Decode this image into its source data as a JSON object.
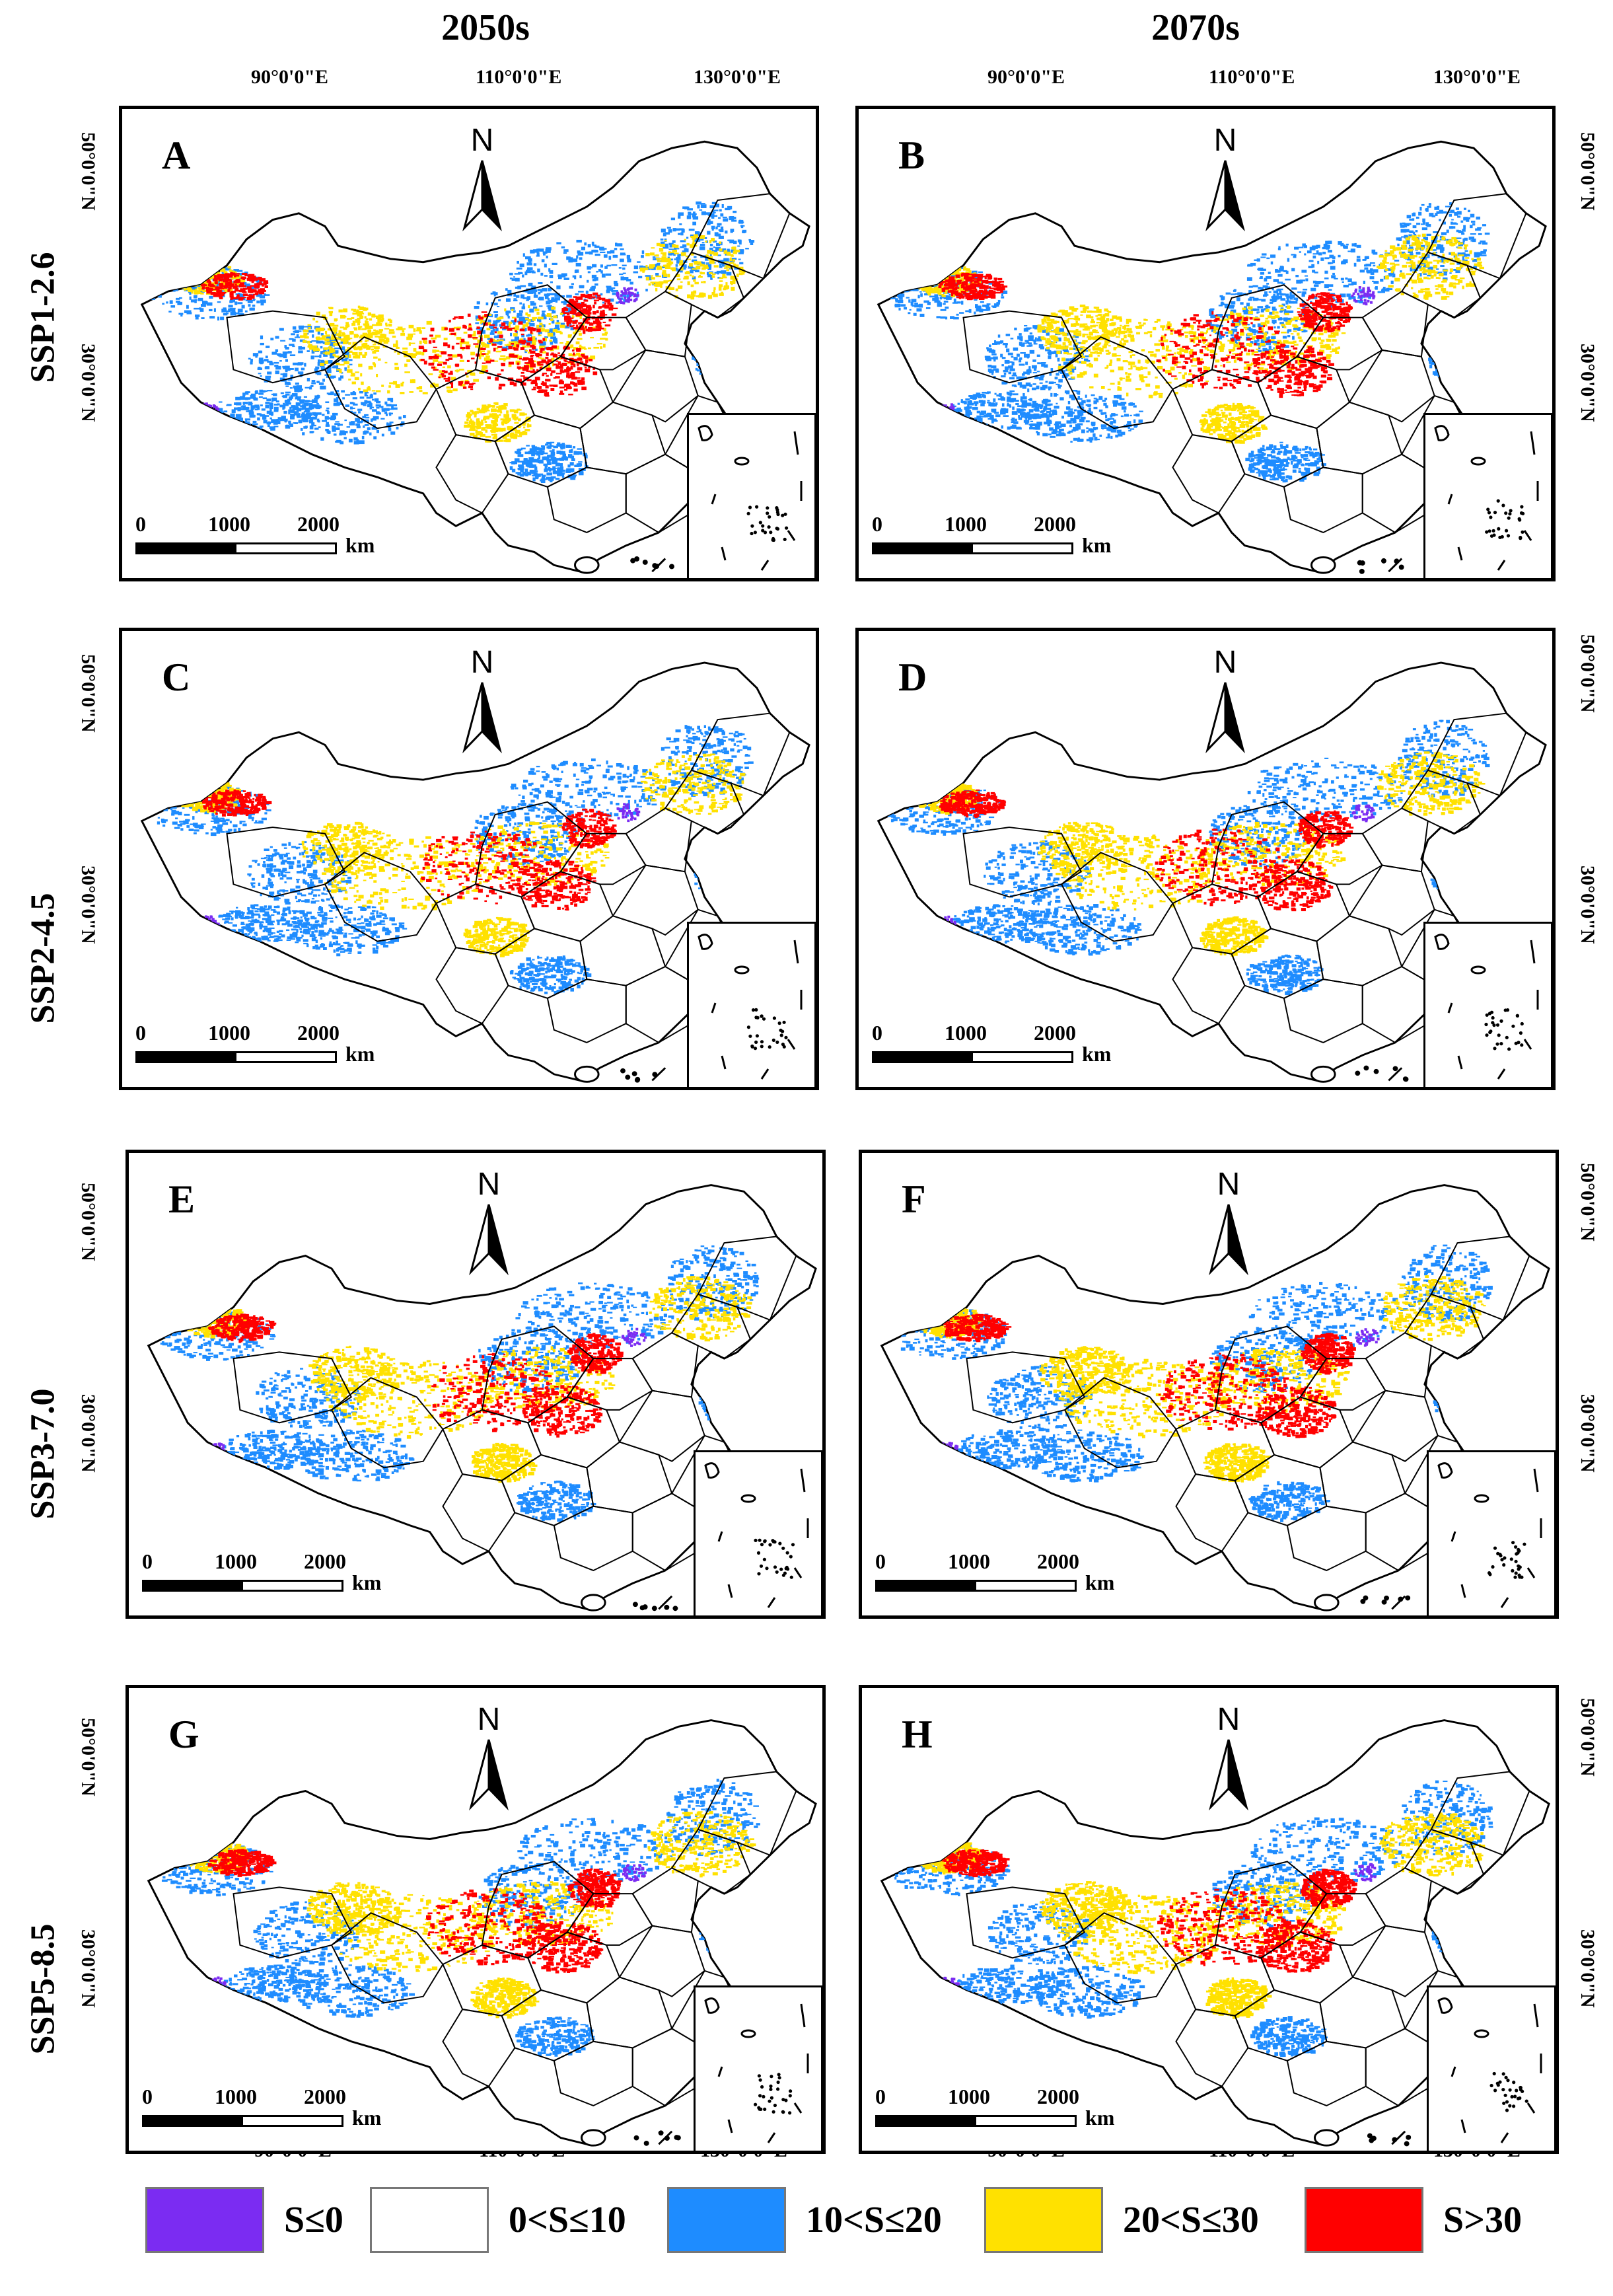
{
  "columns": [
    "2050s",
    "2070s"
  ],
  "rows": [
    "SSP1-2.6",
    "SSP2-4.5",
    "SSP3-7.0",
    "SSP5-8.5"
  ],
  "panels": [
    "A",
    "B",
    "C",
    "D",
    "E",
    "F",
    "G",
    "H"
  ],
  "lon_labels": [
    "90°0'0\"E",
    "110°0'0\"E",
    "130°0'0\"E"
  ],
  "lat_labels": [
    "50°0'0\"N",
    "30°0'0\"N"
  ],
  "north_label": "N",
  "scale": {
    "n0": "0",
    "n1": "1000",
    "n2": "2000",
    "unit": "km"
  },
  "legend": [
    {
      "label": "S≤0",
      "color": "#7B2CF2"
    },
    {
      "label": "0<S≤10",
      "color": "#FFFFFF"
    },
    {
      "label": "10<S≤20",
      "color": "#1E8CFF"
    },
    {
      "label": "20<S≤30",
      "color": "#FFE100"
    },
    {
      "label": "S>30",
      "color": "#FF0000"
    }
  ],
  "colors": {
    "purple": "#7B2CF2",
    "blue": "#1E8CFF",
    "yellow": "#FFE100",
    "red": "#FF0000"
  }
}
